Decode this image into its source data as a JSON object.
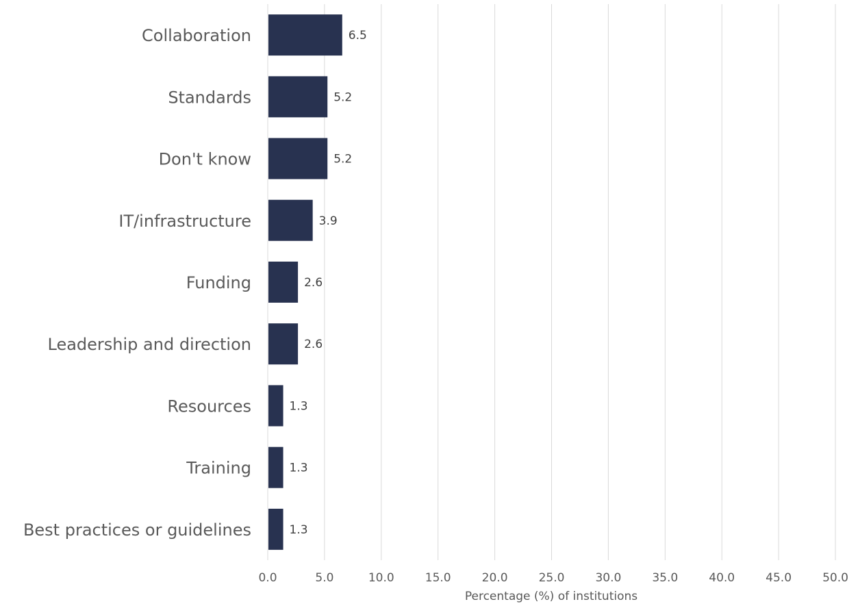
{
  "chart_data": {
    "type": "bar",
    "orientation": "horizontal",
    "categories": [
      "Collaboration",
      "Standards",
      "Don't know",
      "IT/infrastructure",
      "Funding",
      "Leadership and direction",
      "Resources",
      "Training",
      "Best practices or guidelines"
    ],
    "values": [
      6.5,
      5.2,
      5.2,
      3.9,
      2.6,
      2.6,
      1.3,
      1.3,
      1.3
    ],
    "data_labels": [
      "6.5",
      "5.2",
      "5.2",
      "3.9",
      "2.6",
      "2.6",
      "1.3",
      "1.3",
      "1.3"
    ],
    "title": "",
    "xlabel": "Percentage (%) of institutions",
    "ylabel": "",
    "xlim": [
      0,
      50
    ],
    "x_ticks": [
      "0.0",
      "5.0",
      "10.0",
      "15.0",
      "20.0",
      "25.0",
      "30.0",
      "35.0",
      "40.0",
      "45.0",
      "50.0"
    ],
    "grid": "vertical",
    "legend": "none",
    "bar_color": "#283250",
    "grid_color": "#d9d9d9",
    "text_color": "#595959"
  }
}
